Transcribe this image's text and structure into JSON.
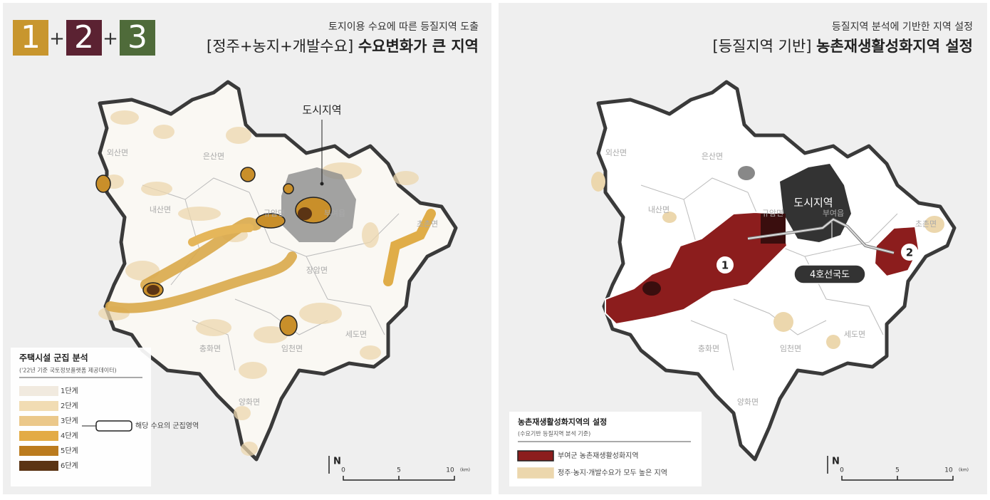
{
  "place_names": [
    "외산면",
    "은산면",
    "내산면",
    "규암면",
    "부여읍",
    "장암면",
    "초촌면",
    "세도면",
    "충화면",
    "임천면",
    "양화면"
  ],
  "left": {
    "badges": [
      "1",
      "2",
      "3"
    ],
    "plus": "+",
    "subtitle": "토지이용 수요에 따른 등질지역 도출",
    "title_prefix": "[정주+농지+개발수요]",
    "title_main": "수요변화가 큰 지역",
    "urban_label": "도시지역",
    "legend": {
      "title": "주택시설 군집 분석",
      "note": "('22년 기준 국토정보플랫폼 제공데이터)",
      "items": [
        "1단계",
        "2단계",
        "3단계",
        "4단계",
        "5단계",
        "6단계"
      ],
      "cluster_label": "해당 수요의 군집영역"
    },
    "scale": {
      "north": "N",
      "ticks": [
        "0",
        "5",
        "10"
      ],
      "unit": "(km)"
    }
  },
  "right": {
    "subtitle": "등질지역 분석에 기반한 지역 설정",
    "title_prefix": "[등질지역 기반]",
    "title_main": "농촌재생활성화지역 설정",
    "urban_label": "도시지역",
    "road_label": "4호선국도",
    "markers": [
      "1",
      "2"
    ],
    "legend": {
      "title": "농촌재생활성화지역의 설정",
      "note": "(수요기반 등질지역 분석 기준)",
      "items": [
        "부여군 농촌재생활성화지역",
        "정주·농지·개발수요가 모두 높은 지역"
      ]
    },
    "scale": {
      "north": "N",
      "ticks": [
        "0",
        "5",
        "10"
      ],
      "unit": "(km)"
    }
  }
}
